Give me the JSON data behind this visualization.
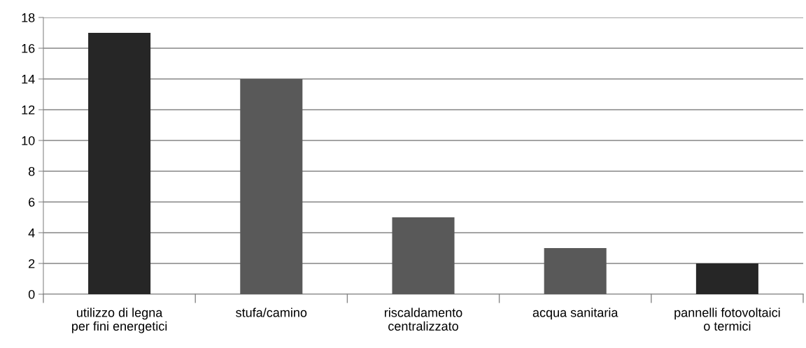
{
  "chart_data": {
    "type": "bar",
    "categories": [
      "utilizzo di legna\nper fini energetici",
      "stufa/camino",
      "riscaldamento\ncentralizzato",
      "acqua sanitaria",
      "pannelli fotovoltaici\no termici"
    ],
    "values": [
      17,
      14,
      5,
      3,
      2
    ],
    "colors": [
      "#262626",
      "#595959",
      "#595959",
      "#595959",
      "#262626"
    ],
    "ylim": [
      0,
      18
    ],
    "yticks": [
      0,
      2,
      4,
      6,
      8,
      10,
      12,
      14,
      16,
      18
    ],
    "grid": "y",
    "legend": false
  }
}
